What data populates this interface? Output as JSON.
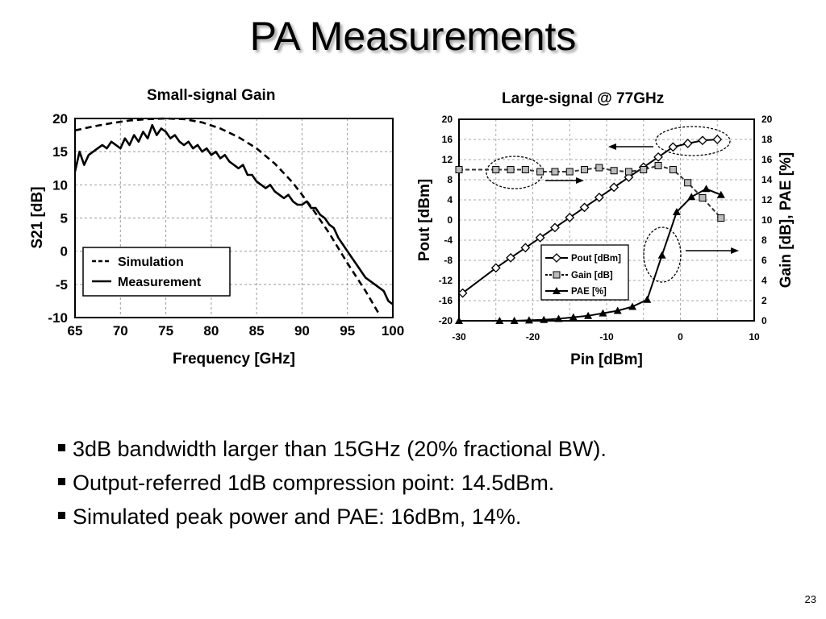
{
  "slide": {
    "title": "PA Measurements",
    "bullets": [
      "3dB bandwidth larger than 15GHz (20% fractional BW).",
      "Output-referred 1dB compression point: 14.5dBm.",
      "Simulated peak power and PAE: 16dBm, 14%."
    ],
    "page_number": "23"
  },
  "chart_data": [
    {
      "type": "line",
      "title": "Small-signal Gain",
      "xlabel": "Frequency [GHz]",
      "ylabel": "S21 [dB]",
      "xlim": [
        65,
        100
      ],
      "ylim": [
        -10,
        20
      ],
      "xticks": [
        "65",
        "70",
        "75",
        "80",
        "85",
        "90",
        "95",
        "100"
      ],
      "yticks": [
        "20",
        "15",
        "10",
        "5",
        "0",
        "-5",
        "-10"
      ],
      "grid": true,
      "legend_position": "bottom-left",
      "series": [
        {
          "name": "Simulation",
          "style": "dashed",
          "x": [
            65,
            67,
            69,
            71,
            73,
            75,
            77,
            79,
            81,
            83,
            85,
            87,
            89,
            91,
            93,
            95,
            97,
            98.5
          ],
          "y": [
            18.2,
            18.8,
            19.3,
            19.7,
            19.9,
            20.0,
            19.9,
            19.4,
            18.5,
            17.2,
            15.5,
            13.2,
            10.3,
            6.7,
            2.7,
            -1.8,
            -6.0,
            -9.5
          ]
        },
        {
          "name": "Measurement",
          "style": "solid",
          "x": [
            65,
            65.5,
            66,
            66.5,
            67,
            67.5,
            68,
            68.5,
            69,
            69.5,
            70,
            70.5,
            71,
            71.5,
            72,
            72.5,
            73,
            73.5,
            74,
            74.5,
            75,
            75.5,
            76,
            76.5,
            77,
            77.5,
            78,
            78.5,
            79,
            79.5,
            80,
            80.5,
            81,
            81.5,
            82,
            82.5,
            83,
            83.5,
            84,
            84.5,
            85,
            85.5,
            86,
            86.5,
            87,
            87.5,
            88,
            88.5,
            89,
            89.5,
            90,
            90.5,
            91,
            91.5,
            92,
            92.5,
            93,
            93.5,
            94,
            94.5,
            95,
            95.5,
            96,
            96.5,
            97,
            97.5,
            98,
            98.5,
            99,
            99.5,
            100
          ],
          "y": [
            12,
            15,
            13,
            14.5,
            15,
            15.5,
            16,
            15.5,
            16.5,
            16,
            15.5,
            17,
            16,
            17.5,
            16.5,
            18,
            17,
            19,
            17.5,
            18.5,
            18,
            17,
            17.5,
            16.5,
            16,
            16.5,
            15.5,
            16,
            15,
            15.5,
            14.5,
            15,
            14,
            14.5,
            13.5,
            13,
            12.5,
            13,
            11.5,
            11.5,
            10.5,
            10,
            9.5,
            10,
            9,
            8.5,
            8,
            8.5,
            7.5,
            7,
            7,
            7.5,
            6.5,
            6.5,
            5.5,
            5,
            4,
            3.5,
            2,
            1,
            0,
            -1,
            -2,
            -3,
            -4,
            -4.5,
            -5,
            -5.5,
            -6,
            -7.5,
            -8
          ]
        }
      ]
    },
    {
      "type": "line",
      "title": "Large-signal @ 77GHz",
      "xlabel": "Pin [dBm]",
      "ylabel": "Pout [dBm]",
      "y2label": "Gain [dB], PAE [%]",
      "xlim": [
        -30,
        10
      ],
      "ylim": [
        -20,
        20
      ],
      "y2lim": [
        0,
        20
      ],
      "xticks": [
        "-30",
        "-20",
        "-10",
        "0",
        "10"
      ],
      "yticks": [
        "20",
        "16",
        "12",
        "8",
        "4",
        "0",
        "-4",
        "-8",
        "-12",
        "-16",
        "-20"
      ],
      "y2ticks": [
        "20",
        "18",
        "16",
        "14",
        "12",
        "10",
        "8",
        "6",
        "4",
        "2",
        "0"
      ],
      "grid": true,
      "legend_position": "bottom-left",
      "series": [
        {
          "name": "Pout [dBm]",
          "marker": "diamond",
          "axis": "left",
          "x": [
            -29.5,
            -25,
            -23,
            -21,
            -19,
            -17,
            -15,
            -13,
            -11,
            -9,
            -7,
            -5,
            -3,
            -1,
            1,
            3,
            5
          ],
          "y": [
            -14.5,
            -9.5,
            -7.5,
            -5.5,
            -3.5,
            -1.5,
            0.5,
            2.5,
            4.5,
            6.5,
            8.5,
            10.5,
            12.5,
            14.5,
            15.2,
            15.8,
            16
          ]
        },
        {
          "name": "Gain [dB]",
          "marker": "square",
          "axis": "right",
          "x": [
            -30,
            -25,
            -23,
            -21,
            -19,
            -17,
            -15,
            -13,
            -11,
            -9,
            -7,
            -5,
            -3,
            -1,
            1,
            3,
            5.5
          ],
          "y": [
            15,
            15,
            15,
            15,
            14.8,
            14.8,
            14.8,
            15,
            15.2,
            14.9,
            14.8,
            15,
            15.4,
            15,
            13.7,
            12.2,
            10.2
          ]
        },
        {
          "name": "PAE [%]",
          "marker": "triangle",
          "axis": "right",
          "x": [
            -30,
            -24.5,
            -22.5,
            -20.5,
            -18.5,
            -16.5,
            -14.5,
            -12.5,
            -10.5,
            -8.5,
            -6.5,
            -4.5,
            -2.5,
            -0.5,
            1.5,
            3.5,
            5.5
          ],
          "y": [
            0,
            0,
            0,
            0.05,
            0.1,
            0.2,
            0.35,
            0.5,
            0.75,
            1.0,
            1.4,
            2.1,
            6.5,
            10.8,
            12.3,
            13.1,
            12.5
          ]
        }
      ]
    }
  ]
}
